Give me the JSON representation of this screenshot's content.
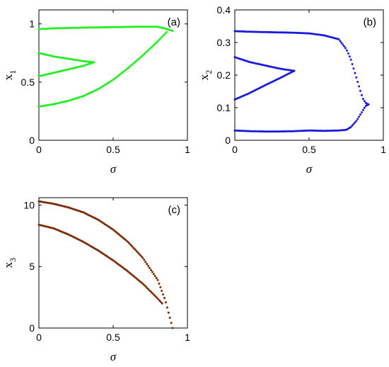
{
  "chart_data": [
    {
      "type": "scatter",
      "panel_label": "(a)",
      "xlabel": "σ",
      "ylabel_main": "x",
      "ylabel_sub": "1",
      "xlim": [
        0,
        1
      ],
      "ylim": [
        0,
        1.12
      ],
      "xticks": [
        0,
        0.5,
        1
      ],
      "xtick_labels": [
        "0",
        "0.5",
        "1"
      ],
      "yticks": [
        0,
        0.5,
        1
      ],
      "ytick_labels": [
        "0",
        "0.5",
        "1"
      ],
      "color": "#22ee22",
      "branches": [
        {
          "x": [
            0,
            0.05,
            0.1,
            0.2,
            0.3,
            0.4,
            0.5,
            0.6,
            0.7,
            0.8,
            0.85,
            0.9
          ],
          "y": [
            0.955,
            0.958,
            0.962,
            0.965,
            0.968,
            0.97,
            0.972,
            0.974,
            0.976,
            0.975,
            0.96,
            0.94
          ]
        },
        {
          "x": [
            0,
            0.1,
            0.2,
            0.3,
            0.37
          ],
          "y": [
            0.75,
            0.72,
            0.7,
            0.68,
            0.67
          ]
        },
        {
          "x": [
            0,
            0.1,
            0.2,
            0.3,
            0.37
          ],
          "y": [
            0.55,
            0.58,
            0.61,
            0.64,
            0.67
          ]
        },
        {
          "x": [
            0,
            0.1,
            0.2,
            0.3,
            0.4,
            0.5,
            0.6,
            0.7,
            0.8,
            0.86
          ],
          "y": [
            0.29,
            0.31,
            0.34,
            0.38,
            0.44,
            0.52,
            0.62,
            0.73,
            0.85,
            0.93
          ]
        }
      ]
    },
    {
      "type": "scatter",
      "panel_label": "(b)",
      "xlabel": "σ",
      "ylabel_main": "x",
      "ylabel_sub": "2",
      "xlim": [
        0,
        1
      ],
      "ylim": [
        0,
        0.4
      ],
      "xticks": [
        0,
        0.5,
        1
      ],
      "xtick_labels": [
        "0",
        "0.5",
        "1"
      ],
      "yticks": [
        0,
        0.1,
        0.2,
        0.3,
        0.4
      ],
      "ytick_labels": [
        "0",
        "0.1",
        "0.2",
        "0.3",
        "0.4"
      ],
      "color": "#1a1adb",
      "branches": [
        {
          "x": [
            0,
            0.1,
            0.2,
            0.3,
            0.4,
            0.5,
            0.6,
            0.7,
            0.75,
            0.78,
            0.8,
            0.82,
            0.84,
            0.86,
            0.88,
            0.9
          ],
          "y": [
            0.335,
            0.333,
            0.332,
            0.331,
            0.33,
            0.328,
            0.322,
            0.31,
            0.28,
            0.25,
            0.22,
            0.19,
            0.16,
            0.13,
            0.115,
            0.11
          ]
        },
        {
          "x": [
            0,
            0.1,
            0.2,
            0.3,
            0.4
          ],
          "y": [
            0.255,
            0.24,
            0.23,
            0.22,
            0.213
          ]
        },
        {
          "x": [
            0,
            0.1,
            0.2,
            0.3,
            0.4
          ],
          "y": [
            0.125,
            0.145,
            0.168,
            0.19,
            0.213
          ]
        },
        {
          "x": [
            0,
            0.1,
            0.2,
            0.3,
            0.4,
            0.5,
            0.6,
            0.7,
            0.75,
            0.78,
            0.8,
            0.82,
            0.84,
            0.86,
            0.88,
            0.9
          ],
          "y": [
            0.03,
            0.028,
            0.027,
            0.027,
            0.028,
            0.03,
            0.029,
            0.03,
            0.032,
            0.04,
            0.05,
            0.06,
            0.075,
            0.09,
            0.105,
            0.11
          ]
        }
      ]
    },
    {
      "type": "scatter",
      "panel_label": "(c)",
      "xlabel": "σ",
      "ylabel_main": "x",
      "ylabel_sub": "3",
      "xlim": [
        0,
        1
      ],
      "ylim": [
        0,
        10.6
      ],
      "xticks": [
        0,
        0.5,
        1
      ],
      "xtick_labels": [
        "0",
        "0.5",
        "1"
      ],
      "yticks": [
        0,
        5,
        10
      ],
      "ytick_labels": [
        "0",
        "5",
        "10"
      ],
      "color": "#7a2a00",
      "branches": [
        {
          "x": [
            0,
            0.1,
            0.2,
            0.3,
            0.4,
            0.5,
            0.6,
            0.7,
            0.8,
            0.85,
            0.9
          ],
          "y": [
            10.3,
            10.1,
            9.8,
            9.4,
            8.8,
            8.0,
            7.0,
            5.7,
            3.9,
            2.3,
            0.0
          ]
        },
        {
          "x": [
            0,
            0.1,
            0.2,
            0.3,
            0.4,
            0.5,
            0.6,
            0.7,
            0.8,
            0.83
          ],
          "y": [
            8.4,
            8.1,
            7.6,
            7.0,
            6.3,
            5.5,
            4.6,
            3.6,
            2.4,
            2.0
          ]
        }
      ]
    }
  ]
}
